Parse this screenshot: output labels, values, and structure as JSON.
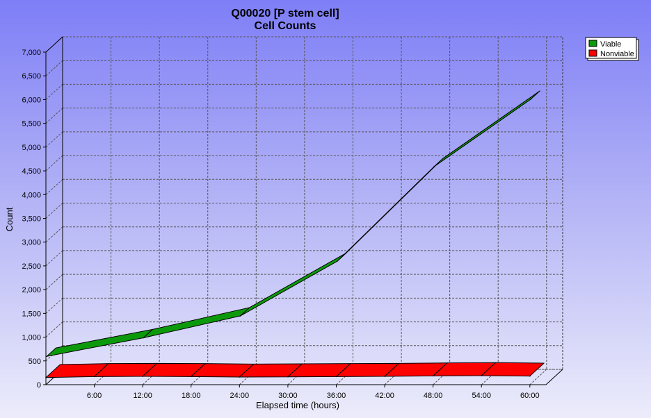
{
  "chart_data": {
    "type": "area",
    "title": "Q00020 [P stem cell]",
    "subtitle": "Cell Counts",
    "xlabel": "Elapsed time (hours)",
    "ylabel": "Count",
    "x_ticks": [
      "6:00",
      "12:00",
      "18:00",
      "24:00",
      "30:00",
      "36:00",
      "42:00",
      "48:00",
      "54:00",
      "60:00"
    ],
    "y_ticks": [
      "0",
      "500",
      "1,000",
      "1,500",
      "2,000",
      "2,500",
      "3,000",
      "3,500",
      "4,000",
      "4,500",
      "5,000",
      "5,500",
      "6,000",
      "6,500",
      "7,000"
    ],
    "xlim": [
      0,
      62
    ],
    "ylim": [
      0,
      7000
    ],
    "grid": true,
    "three_d": true,
    "legend_position": "top-right",
    "series": [
      {
        "name": "Viable",
        "color": "#0c9a0c",
        "x": [
          0,
          12,
          24,
          36,
          48,
          60
        ],
        "y": [
          580,
          970,
          1430,
          2580,
          4570,
          5990
        ]
      },
      {
        "name": "Nonviable",
        "color": "#ff0000",
        "x": [
          0,
          6,
          12,
          18,
          24,
          30,
          36,
          42,
          48,
          54,
          60
        ],
        "y": [
          150,
          170,
          175,
          170,
          160,
          165,
          170,
          175,
          185,
          190,
          180
        ]
      }
    ]
  }
}
